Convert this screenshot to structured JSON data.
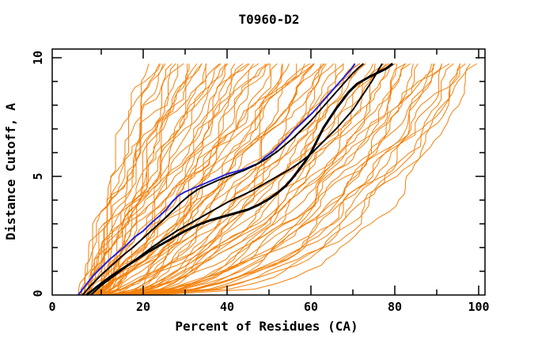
{
  "page": {
    "background": "#ffffff"
  },
  "chart_data": {
    "type": "line",
    "title": "T0960-D2",
    "xlabel": "Percent of Residues (CA)",
    "ylabel": "Distance Cutoff, A",
    "xlim": [
      0,
      100
    ],
    "ylim": [
      0,
      10
    ],
    "grid": false,
    "legend": "none",
    "x_major_ticks": [
      0,
      20,
      40,
      60,
      80,
      100
    ],
    "x_minor_ticks": [
      10,
      30,
      50,
      70,
      90
    ],
    "y_major_ticks": [
      0,
      5,
      10
    ],
    "y_minor_ticks": [
      1,
      2,
      3,
      4,
      6,
      7,
      8,
      9
    ],
    "colors": {
      "prediction": "#F5800A",
      "highlight": "#000000",
      "best": "#2222DE",
      "frame": "#000000"
    },
    "series": [
      {
        "name": "best-model-blue",
        "color": "#2222DE",
        "width": 2,
        "points": [
          [
            4.5,
            0
          ],
          [
            6,
            0.35
          ],
          [
            8,
            0.8
          ],
          [
            10,
            1.15
          ],
          [
            12,
            1.5
          ],
          [
            14,
            1.8
          ],
          [
            16,
            2.1
          ],
          [
            18,
            2.45
          ],
          [
            20,
            2.7
          ],
          [
            22,
            3.05
          ],
          [
            24,
            3.35
          ],
          [
            25.5,
            3.6
          ],
          [
            27,
            3.95
          ],
          [
            28.5,
            4.2
          ],
          [
            30,
            4.35
          ],
          [
            32,
            4.5
          ],
          [
            34,
            4.65
          ],
          [
            36,
            4.8
          ],
          [
            38,
            4.95
          ],
          [
            40,
            5.1
          ],
          [
            42,
            5.2
          ],
          [
            44,
            5.3
          ],
          [
            46,
            5.45
          ],
          [
            47.5,
            5.55
          ],
          [
            49,
            5.8
          ],
          [
            51,
            6.05
          ],
          [
            53,
            6.4
          ],
          [
            54.5,
            6.65
          ],
          [
            56,
            6.95
          ],
          [
            57.5,
            7.2
          ],
          [
            59,
            7.45
          ],
          [
            60.5,
            7.7
          ],
          [
            62,
            8.0
          ],
          [
            63.5,
            8.3
          ],
          [
            65,
            8.6
          ],
          [
            66.5,
            8.9
          ],
          [
            68,
            9.2
          ],
          [
            69.5,
            9.5
          ],
          [
            70.5,
            9.75
          ]
        ]
      },
      {
        "name": "highlight-model-1",
        "color": "#000000",
        "width": 2,
        "points": [
          [
            5.5,
            0
          ],
          [
            7.5,
            0.4
          ],
          [
            10,
            0.85
          ],
          [
            12.5,
            1.25
          ],
          [
            15,
            1.65
          ],
          [
            17.5,
            2.0
          ],
          [
            20,
            2.4
          ],
          [
            22.5,
            2.8
          ],
          [
            25,
            3.2
          ],
          [
            27,
            3.55
          ],
          [
            29,
            3.9
          ],
          [
            31,
            4.2
          ],
          [
            33,
            4.45
          ],
          [
            35.5,
            4.65
          ],
          [
            38,
            4.85
          ],
          [
            41,
            5.05
          ],
          [
            44,
            5.25
          ],
          [
            47,
            5.5
          ],
          [
            49.5,
            5.75
          ],
          [
            52,
            6.05
          ],
          [
            54,
            6.35
          ],
          [
            56,
            6.65
          ],
          [
            58,
            7.0
          ],
          [
            60,
            7.35
          ],
          [
            62,
            7.75
          ],
          [
            64,
            8.15
          ],
          [
            66,
            8.55
          ],
          [
            68,
            8.95
          ],
          [
            70,
            9.35
          ],
          [
            71.5,
            9.6
          ],
          [
            72.5,
            9.75
          ]
        ]
      },
      {
        "name": "highlight-model-2",
        "color": "#000000",
        "width": 3,
        "points": [
          [
            6.5,
            0
          ],
          [
            9,
            0.35
          ],
          [
            12,
            0.75
          ],
          [
            15,
            1.1
          ],
          [
            18,
            1.45
          ],
          [
            21,
            1.8
          ],
          [
            24,
            2.1
          ],
          [
            27,
            2.4
          ],
          [
            30,
            2.7
          ],
          [
            33,
            2.95
          ],
          [
            36,
            3.15
          ],
          [
            39,
            3.3
          ],
          [
            42,
            3.45
          ],
          [
            45,
            3.6
          ],
          [
            47.5,
            3.8
          ],
          [
            50,
            4.05
          ],
          [
            52,
            4.3
          ],
          [
            54,
            4.6
          ],
          [
            55.5,
            4.9
          ],
          [
            57,
            5.25
          ],
          [
            58.5,
            5.6
          ],
          [
            60,
            6.0
          ],
          [
            61,
            6.35
          ],
          [
            62,
            6.7
          ],
          [
            63,
            7.05
          ],
          [
            64.5,
            7.45
          ],
          [
            66,
            7.85
          ],
          [
            67.5,
            8.2
          ],
          [
            69,
            8.55
          ],
          [
            71,
            8.9
          ],
          [
            74,
            9.2
          ],
          [
            78,
            9.55
          ],
          [
            79.5,
            9.75
          ]
        ]
      },
      {
        "name": "highlight-model-3",
        "color": "#000000",
        "width": 2,
        "points": [
          [
            7.5,
            0
          ],
          [
            10,
            0.4
          ],
          [
            13,
            0.8
          ],
          [
            16,
            1.2
          ],
          [
            19,
            1.6
          ],
          [
            22,
            2.0
          ],
          [
            25,
            2.35
          ],
          [
            28,
            2.7
          ],
          [
            31,
            3.0
          ],
          [
            34,
            3.3
          ],
          [
            37,
            3.6
          ],
          [
            40,
            3.9
          ],
          [
            43,
            4.15
          ],
          [
            46,
            4.4
          ],
          [
            49,
            4.7
          ],
          [
            52,
            5.0
          ],
          [
            55,
            5.3
          ],
          [
            57.5,
            5.6
          ],
          [
            60,
            5.95
          ],
          [
            62,
            6.3
          ],
          [
            64,
            6.65
          ],
          [
            66,
            7.0
          ],
          [
            68,
            7.4
          ],
          [
            70,
            7.8
          ],
          [
            71.5,
            8.2
          ],
          [
            73,
            8.6
          ],
          [
            74.5,
            9.0
          ],
          [
            75.5,
            9.3
          ],
          [
            76.5,
            9.6
          ],
          [
            77,
            9.75
          ]
        ]
      }
    ],
    "prediction_curves": {
      "description": "Orange cumulative accuracy curves, one per predicted model; each spec gives x at cutoff 0 (x0), x at cutoff 9.75 (x1) and shape exponent e",
      "y_top": 9.75,
      "y_step": 0.25,
      "curves": [
        {
          "x1": 21,
          "x0": 5,
          "e": 1.25
        },
        {
          "x1": 22,
          "x0": 6.5,
          "e": 1.18
        },
        {
          "x1": 23,
          "x0": 6,
          "e": 1.3
        },
        {
          "x1": 24,
          "x0": 5.5,
          "e": 1.22
        },
        {
          "x1": 25,
          "x0": 7,
          "e": 1.1
        },
        {
          "x1": 26,
          "x0": 6,
          "e": 1.15
        },
        {
          "x1": 27,
          "x0": 7,
          "e": 1.18
        },
        {
          "x1": 28,
          "x0": 7.5,
          "e": 1.12
        },
        {
          "x1": 29,
          "x0": 5.5,
          "e": 1.2
        },
        {
          "x1": 30,
          "x0": 8,
          "e": 1.05
        },
        {
          "x1": 31,
          "x0": 6.5,
          "e": 1.1
        },
        {
          "x1": 32,
          "x0": 8.5,
          "e": 1.05
        },
        {
          "x1": 33,
          "x0": 7,
          "e": 1.08
        },
        {
          "x1": 34,
          "x0": 9,
          "e": 1.0
        },
        {
          "x1": 35,
          "x0": 6,
          "e": 1.12
        },
        {
          "x1": 36,
          "x0": 8,
          "e": 1.02
        },
        {
          "x1": 37,
          "x0": 9,
          "e": 1.0
        },
        {
          "x1": 38,
          "x0": 7,
          "e": 1.05
        },
        {
          "x1": 39,
          "x0": 9.5,
          "e": 0.98
        },
        {
          "x1": 40,
          "x0": 6.5,
          "e": 1.08
        },
        {
          "x1": 41,
          "x0": 8.5,
          "e": 0.95
        },
        {
          "x1": 42,
          "x0": 10,
          "e": 0.92
        },
        {
          "x1": 43,
          "x0": 10.5,
          "e": 0.92
        },
        {
          "x1": 44,
          "x0": 7,
          "e": 1.0
        },
        {
          "x1": 45,
          "x0": 9,
          "e": 0.9
        },
        {
          "x1": 46,
          "x0": 11,
          "e": 0.88
        },
        {
          "x1": 47,
          "x0": 7.5,
          "e": 0.95
        },
        {
          "x1": 48,
          "x0": 10,
          "e": 0.85
        },
        {
          "x1": 49,
          "x0": 11,
          "e": 0.85
        },
        {
          "x1": 50,
          "x0": 8,
          "e": 0.9
        },
        {
          "x1": 51,
          "x0": 11.5,
          "e": 0.82
        },
        {
          "x1": 52,
          "x0": 9,
          "e": 0.88
        },
        {
          "x1": 53,
          "x0": 12,
          "e": 0.8
        },
        {
          "x1": 54,
          "x0": 8.5,
          "e": 0.85
        },
        {
          "x1": 55,
          "x0": 10,
          "e": 0.8
        },
        {
          "x1": 56,
          "x0": 12.5,
          "e": 0.78
        },
        {
          "x1": 57,
          "x0": 12,
          "e": 0.8
        },
        {
          "x1": 58,
          "x0": 9,
          "e": 0.82
        },
        {
          "x1": 59,
          "x0": 11,
          "e": 0.76
        },
        {
          "x1": 60,
          "x0": 13,
          "e": 0.74
        },
        {
          "x1": 61,
          "x0": 9.5,
          "e": 0.8
        },
        {
          "x1": 62,
          "x0": 11.5,
          "e": 0.72
        },
        {
          "x1": 63,
          "x0": 14,
          "e": 0.7
        },
        {
          "x1": 64,
          "x0": 10,
          "e": 0.75
        },
        {
          "x1": 65,
          "x0": 12,
          "e": 0.7
        },
        {
          "x1": 66,
          "x0": 14.5,
          "e": 0.66
        },
        {
          "x1": 67,
          "x0": 13.5,
          "e": 0.68
        },
        {
          "x1": 68,
          "x0": 10.5,
          "e": 0.72
        },
        {
          "x1": 69,
          "x0": 13,
          "e": 0.65
        },
        {
          "x1": 70,
          "x0": 15,
          "e": 0.62
        },
        {
          "x1": 71,
          "x0": 11,
          "e": 0.68
        },
        {
          "x1": 72,
          "x0": 13.5,
          "e": 0.62
        },
        {
          "x1": 73,
          "x0": 16,
          "e": 0.58
        },
        {
          "x1": 74,
          "x0": 11.5,
          "e": 0.65
        },
        {
          "x1": 75,
          "x0": 14,
          "e": 0.6
        },
        {
          "x1": 76,
          "x0": 16.5,
          "e": 0.55
        },
        {
          "x1": 77,
          "x0": 15.5,
          "e": 0.58
        },
        {
          "x1": 78,
          "x0": 12,
          "e": 0.6
        },
        {
          "x1": 79,
          "x0": 15,
          "e": 0.55
        },
        {
          "x1": 80,
          "x0": 17,
          "e": 0.52
        },
        {
          "x1": 81,
          "x0": 12.5,
          "e": 0.58
        },
        {
          "x1": 82,
          "x0": 15.5,
          "e": 0.52
        },
        {
          "x1": 83,
          "x0": 17,
          "e": 0.5
        },
        {
          "x1": 84,
          "x0": 18,
          "e": 0.48
        },
        {
          "x1": 85,
          "x0": 13,
          "e": 0.55
        },
        {
          "x1": 86,
          "x0": 16,
          "e": 0.5
        },
        {
          "x1": 87,
          "x0": 18.5,
          "e": 0.47
        },
        {
          "x1": 88,
          "x0": 19,
          "e": 0.45
        },
        {
          "x1": 89,
          "x0": 14,
          "e": 0.5
        },
        {
          "x1": 90,
          "x0": 17,
          "e": 0.46
        },
        {
          "x1": 91,
          "x0": 20,
          "e": 0.42
        },
        {
          "x1": 92,
          "x0": 15,
          "e": 0.46
        },
        {
          "x1": 93,
          "x0": 20,
          "e": 0.44
        },
        {
          "x1": 94,
          "x0": 18,
          "e": 0.42
        },
        {
          "x1": 95,
          "x0": 21,
          "e": 0.38
        },
        {
          "x1": 96,
          "x0": 16,
          "e": 0.42
        },
        {
          "x1": 97,
          "x0": 22,
          "e": 0.4
        },
        {
          "x1": 98,
          "x0": 19,
          "e": 0.38
        },
        {
          "x1": 99,
          "x0": 23,
          "e": 0.33
        }
      ]
    }
  }
}
